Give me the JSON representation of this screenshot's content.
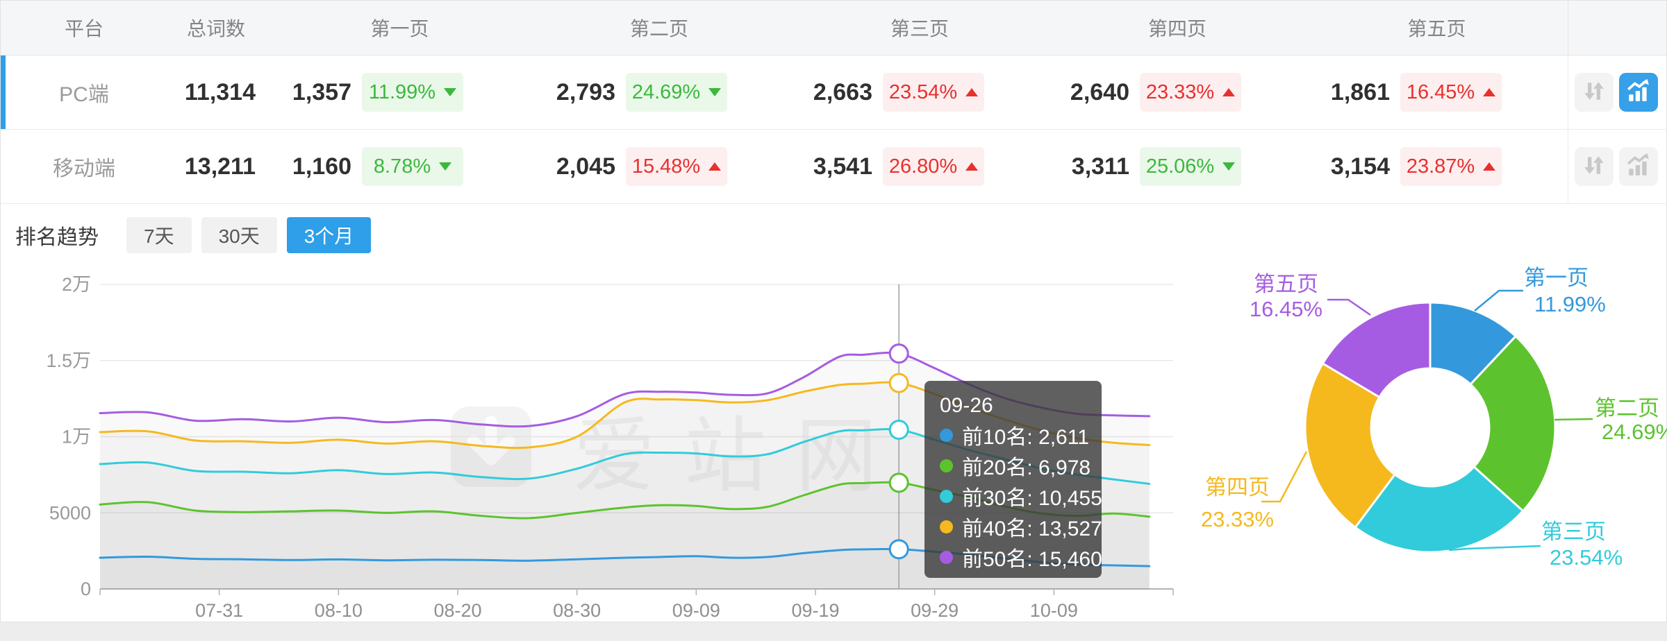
{
  "colors": {
    "accent_blue": "#2e9fe8",
    "badge_green_text": "#3cb83c",
    "badge_green_bg": "#eaf8ea",
    "badge_red_text": "#e8302f",
    "badge_red_bg": "#fdefef",
    "series_palette": [
      "#3399dc",
      "#5cc32e",
      "#32cbdb",
      "#f5b91e",
      "#a55ce2"
    ]
  },
  "table": {
    "headers": {
      "platform": "平台",
      "total": "总词数",
      "pages": [
        "第一页",
        "第二页",
        "第三页",
        "第四页",
        "第五页"
      ]
    },
    "rows": [
      {
        "platform": "PC端",
        "total": "11,314",
        "selected": true,
        "pages": [
          {
            "value": "1,357",
            "pct": "11.99%",
            "dir": "down",
            "tone": "green"
          },
          {
            "value": "2,793",
            "pct": "24.69%",
            "dir": "down",
            "tone": "green"
          },
          {
            "value": "2,663",
            "pct": "23.54%",
            "dir": "up",
            "tone": "red"
          },
          {
            "value": "2,640",
            "pct": "23.33%",
            "dir": "up",
            "tone": "red"
          },
          {
            "value": "1,861",
            "pct": "16.45%",
            "dir": "up",
            "tone": "red"
          }
        ],
        "chart_button_active": true
      },
      {
        "platform": "移动端",
        "total": "13,211",
        "selected": false,
        "pages": [
          {
            "value": "1,160",
            "pct": "8.78%",
            "dir": "down",
            "tone": "green"
          },
          {
            "value": "2,045",
            "pct": "15.48%",
            "dir": "up",
            "tone": "red"
          },
          {
            "value": "3,541",
            "pct": "26.80%",
            "dir": "up",
            "tone": "red"
          },
          {
            "value": "3,311",
            "pct": "25.06%",
            "dir": "down",
            "tone": "green"
          },
          {
            "value": "3,154",
            "pct": "23.87%",
            "dir": "up",
            "tone": "red"
          }
        ],
        "chart_button_active": false
      }
    ]
  },
  "trend": {
    "title": "排名趋势",
    "tabs": [
      {
        "label": "7天",
        "active": false
      },
      {
        "label": "30天",
        "active": false
      },
      {
        "label": "3个月",
        "active": true
      }
    ]
  },
  "watermark": {
    "text": "爱站网"
  },
  "tooltip": {
    "date": "09-26",
    "items": [
      {
        "label": "前10名",
        "value": "2,611",
        "text": "前10名: 2,611"
      },
      {
        "label": "前20名",
        "value": "6,978",
        "text": "前20名: 6,978"
      },
      {
        "label": "前30名",
        "value": "10,455",
        "text": "前30名: 10,455"
      },
      {
        "label": "前40名",
        "value": "13,527",
        "text": "前40名: 13,527"
      },
      {
        "label": "前50名",
        "value": "15,460",
        "text": "前50名: 15,460"
      }
    ]
  },
  "chart_data": [
    {
      "type": "line",
      "title": "排名趋势 (3个月)",
      "grid": true,
      "legend_position": "none",
      "ylim": [
        0,
        20000
      ],
      "y_tick_values": [
        0,
        5000,
        10000,
        15000,
        20000
      ],
      "y_tick_labels": [
        "0",
        "5000",
        "1万",
        "1.5万",
        "2万"
      ],
      "x_range": [
        "07-21",
        "10-19"
      ],
      "x_ticks": [
        "07-31",
        "08-10",
        "08-20",
        "08-30",
        "09-09",
        "09-19",
        "09-29",
        "10-09"
      ],
      "crosshair_date": "09-26",
      "dates": [
        "07-21",
        "07-25",
        "07-29",
        "08-02",
        "08-06",
        "08-10",
        "08-14",
        "08-18",
        "08-22",
        "08-26",
        "08-30",
        "09-03",
        "09-06",
        "09-09",
        "09-12",
        "09-15",
        "09-18",
        "09-21",
        "09-23",
        "09-26",
        "09-29",
        "10-02",
        "10-05",
        "10-08",
        "10-11",
        "10-14",
        "10-17"
      ],
      "series": [
        {
          "name": "前10名",
          "color": "#3399dc",
          "values": [
            2050,
            2120,
            1980,
            1950,
            1900,
            1940,
            1880,
            1920,
            1900,
            1860,
            1950,
            2050,
            2100,
            2150,
            2050,
            2100,
            2350,
            2550,
            2600,
            2611,
            2450,
            2250,
            2000,
            1750,
            1600,
            1550,
            1500
          ]
        },
        {
          "name": "前20名",
          "color": "#5cc32e",
          "values": [
            5550,
            5700,
            5150,
            5050,
            5100,
            5150,
            5000,
            5100,
            4800,
            4650,
            5000,
            5350,
            5500,
            5450,
            5250,
            5400,
            6150,
            6850,
            6950,
            6978,
            6500,
            6000,
            5400,
            4950,
            4800,
            4950,
            4750
          ]
        },
        {
          "name": "前30名",
          "color": "#32cbdb",
          "values": [
            8200,
            8300,
            7750,
            7700,
            7600,
            7800,
            7550,
            7650,
            7350,
            7250,
            7900,
            8850,
            8950,
            8900,
            8700,
            8850,
            9650,
            10350,
            10420,
            10455,
            9800,
            9100,
            8500,
            7900,
            7500,
            7200,
            6900
          ]
        },
        {
          "name": "前40名",
          "color": "#f5b91e",
          "values": [
            10300,
            10350,
            9750,
            9700,
            9600,
            9800,
            9550,
            9700,
            9400,
            9300,
            10000,
            12250,
            12450,
            12400,
            12250,
            12400,
            12950,
            13400,
            13480,
            13527,
            12800,
            11900,
            11100,
            10400,
            9900,
            9600,
            9450
          ]
        },
        {
          "name": "前50名",
          "color": "#a55ce2",
          "values": [
            11550,
            11600,
            11050,
            11150,
            11000,
            11250,
            10950,
            11100,
            10800,
            10700,
            11350,
            12800,
            12950,
            12900,
            12750,
            12850,
            13900,
            15250,
            15380,
            15460,
            14500,
            13400,
            12500,
            11900,
            11500,
            11400,
            11350
          ]
        }
      ]
    },
    {
      "type": "pie",
      "donut": true,
      "labels": [
        "第一页",
        "第二页",
        "第三页",
        "第四页",
        "第五页"
      ],
      "values": [
        11.99,
        24.69,
        23.54,
        23.33,
        16.45
      ],
      "label_texts": [
        "11.99%",
        "24.69%",
        "23.54%",
        "23.33%",
        "16.45%"
      ],
      "colors": [
        "#3399dc",
        "#5cc32e",
        "#32cbdb",
        "#f5b91e",
        "#a55ce2"
      ]
    }
  ]
}
